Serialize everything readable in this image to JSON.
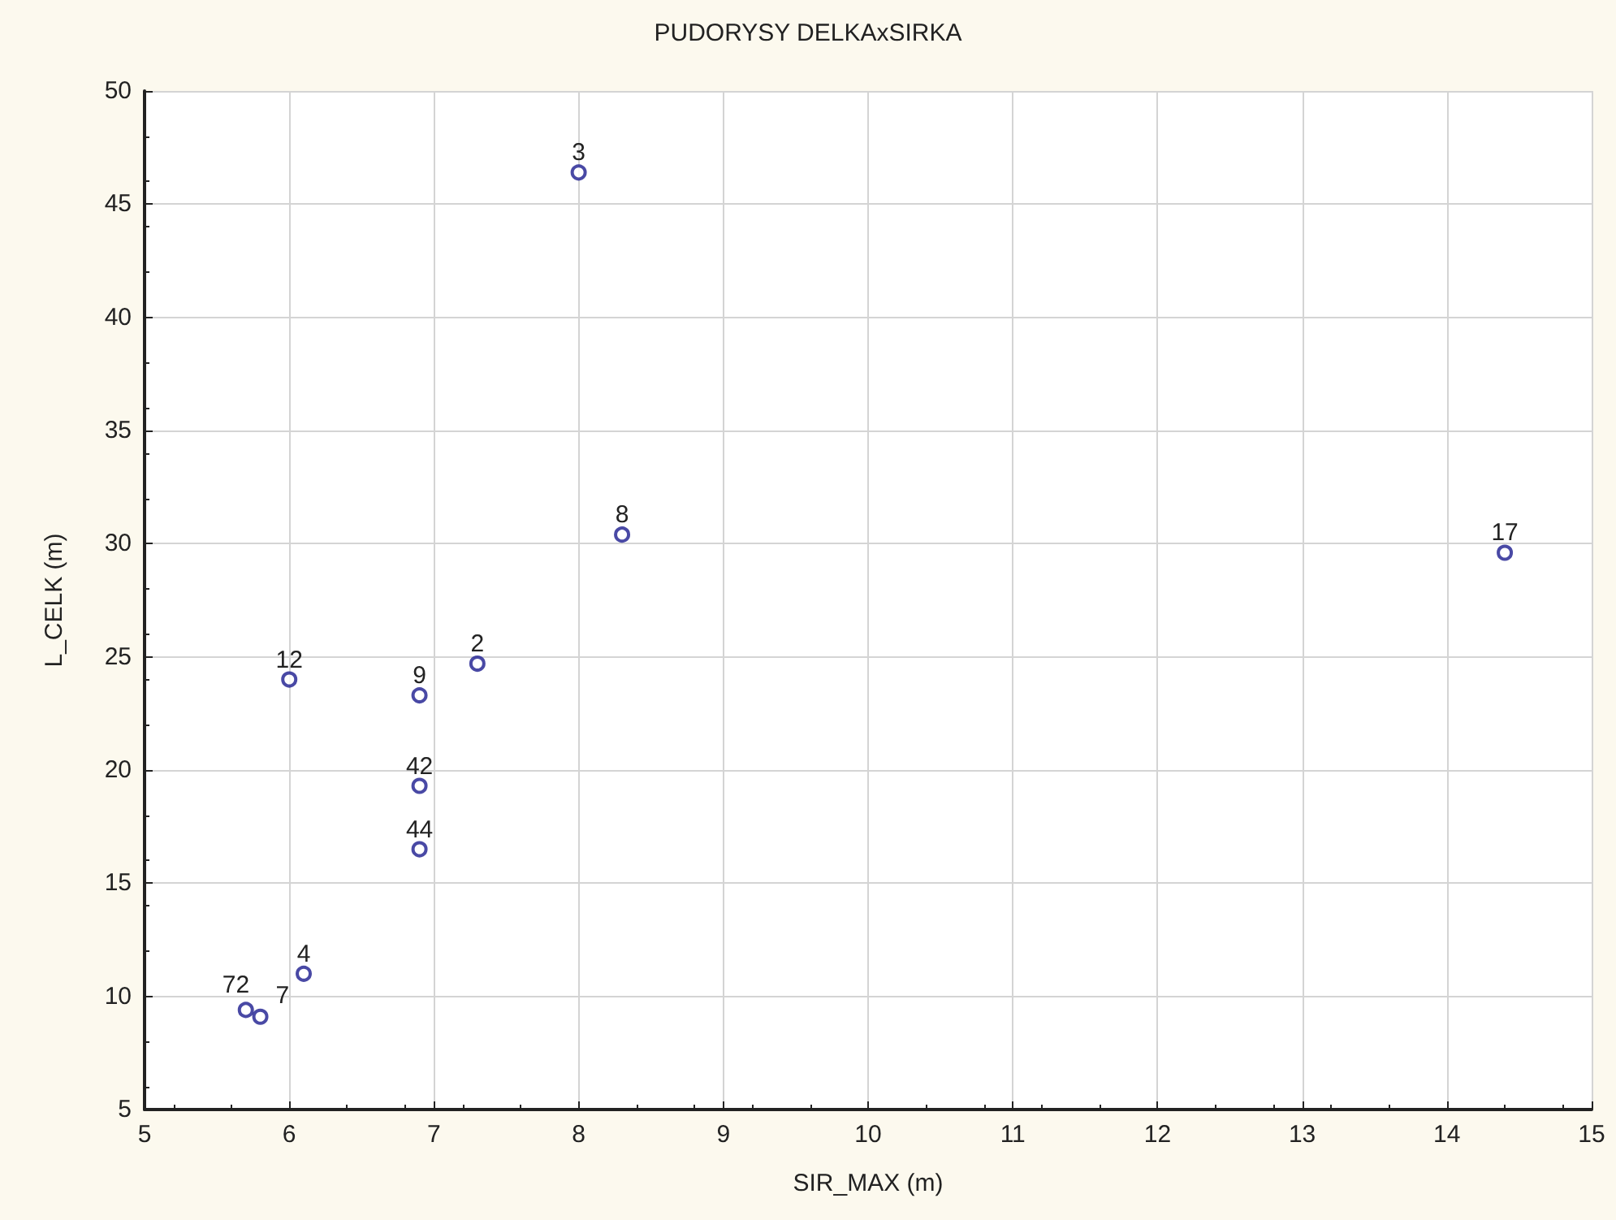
{
  "chart_data": {
    "type": "scatter",
    "title": "PUDORYSY DELKAxSIRKA",
    "xlabel": "SIR_MAX (m)",
    "ylabel": "L_CELK (m)",
    "x": [
      8.0,
      8.3,
      7.3,
      6.0,
      6.9,
      6.9,
      6.9,
      6.1,
      5.7,
      5.8,
      14.4
    ],
    "series": [
      {
        "color": "#1c1c8e",
        "values": [
          46.4,
          30.4,
          24.7,
          24.0,
          23.3,
          19.3,
          16.5,
          11.0,
          9.4,
          9.1,
          29.6
        ]
      }
    ],
    "annotations": [
      {
        "text": "3",
        "x": 8.0,
        "y": 46.4
      },
      {
        "text": "8",
        "x": 8.3,
        "y": 30.4
      },
      {
        "text": "2",
        "x": 7.3,
        "y": 24.7
      },
      {
        "text": "12",
        "x": 6.0,
        "y": 24.0
      },
      {
        "text": "9",
        "x": 6.9,
        "y": 23.3
      },
      {
        "text": "42",
        "x": 6.9,
        "y": 19.3
      },
      {
        "text": "44",
        "x": 6.9,
        "y": 16.5
      },
      {
        "text": "4",
        "x": 6.1,
        "y": 11.0
      },
      {
        "text": "72",
        "x": 5.7,
        "y": 9.4
      },
      {
        "text": "7",
        "x": 5.8,
        "y": 9.1
      },
      {
        "text": "17",
        "x": 14.4,
        "y": 29.6
      }
    ],
    "xlim": [
      5,
      15
    ],
    "xticks": [
      5,
      6,
      7,
      8,
      9,
      10,
      11,
      12,
      13,
      14,
      15
    ],
    "ylim": [
      5,
      50
    ],
    "yticks": [
      5,
      10,
      15,
      20,
      25,
      30,
      35,
      40,
      45,
      50
    ],
    "grid": true,
    "marker": "circle"
  }
}
